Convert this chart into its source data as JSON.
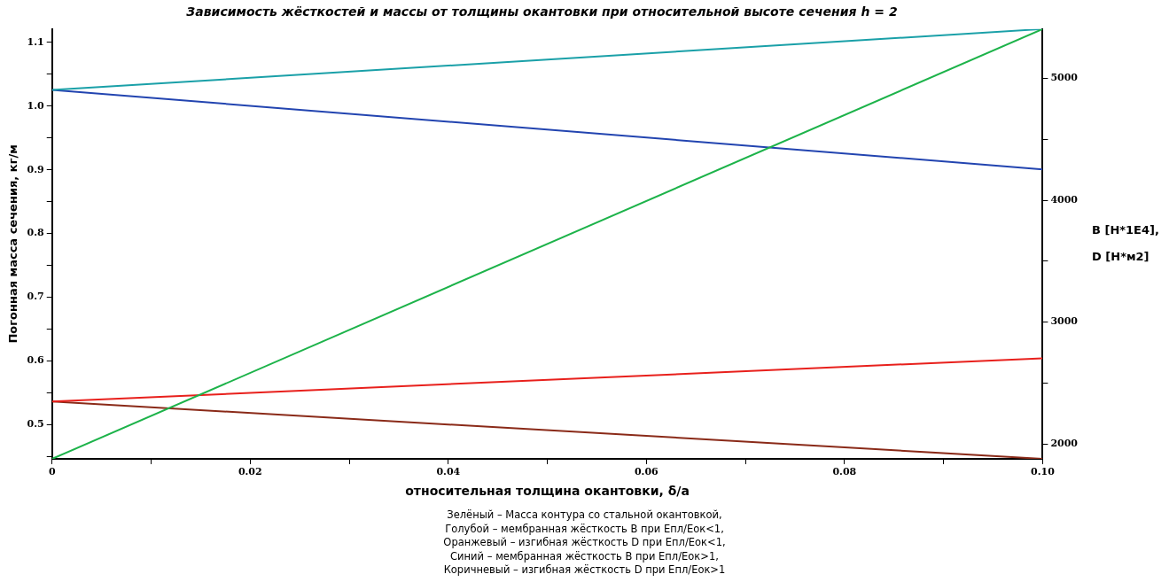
{
  "chart_data": {
    "type": "line",
    "title": "Зависимость жёсткостей и массы от толщины окантовки при относительной высоте сечения h = 2",
    "xlabel": "относительная толщина окантовки, δ/a",
    "ylabel": "Погонная масса сечения, кг/м",
    "y2label": "B [H*1E4], D [H*м2]",
    "x": [
      0,
      0.1
    ],
    "series": [
      {
        "color": "#1db34a",
        "values": [
          0.446,
          1.121
        ]
      },
      {
        "color": "#1aa0a8",
        "values": [
          4906,
          5406
        ],
        "axis": "y2"
      },
      {
        "color": "#2244b0",
        "values": [
          4906,
          4254
        ],
        "axis": "y2"
      },
      {
        "color": "#e8201c",
        "values": [
          2348,
          2703
        ],
        "axis": "y2"
      },
      {
        "color": "#8a2a18",
        "values": [
          2348,
          1877
        ],
        "axis": "y2"
      }
    ],
    "xlim": [
      0,
      0.1
    ],
    "xticks": [
      0,
      {
        "value": 0.01,
        "label": null
      },
      0.02,
      {
        "value": 0.03,
        "label": null
      },
      0.04,
      {
        "value": 0.05,
        "label": null
      },
      0.06,
      {
        "value": 0.07,
        "label": null
      },
      0.08,
      {
        "value": 0.09,
        "label": null
      },
      {
        "value": 0.1,
        "label": "0.10"
      }
    ],
    "ylim": [
      0.446,
      1.121
    ],
    "yticks": [
      {
        "value": 0.45,
        "label": null
      },
      0.5,
      {
        "value": 0.55,
        "label": null
      },
      0.6,
      {
        "value": 0.65,
        "label": null
      },
      0.7,
      {
        "value": 0.75,
        "label": null
      },
      0.8,
      {
        "value": 0.85,
        "label": null
      },
      0.9,
      {
        "value": 0.95,
        "label": null
      },
      {
        "value": 1.0,
        "label": "1.0"
      },
      {
        "value": 1.05,
        "label": null
      },
      1.1
    ],
    "y2lim": [
      1877,
      5406
    ],
    "y2ticks": [
      2000,
      {
        "value": 2500,
        "label": null
      },
      3000,
      {
        "value": 3500,
        "label": null
      },
      4000,
      {
        "value": 4500,
        "label": null
      },
      5000
    ],
    "grid": false,
    "legend": false,
    "marker": "none",
    "line_style": "solid",
    "annotations": [
      "Зелёный – Масса контура со стальной окантовкой,",
      "Голубой – мембранная жёсткость В при Епл/Еок<1,",
      "Оранжевый – изгибная жёсткость D при Епл/Еок<1,",
      "Синий – мембранная жёсткость В при Епл/Еок>1,",
      "Коричневый – изгибная жёсткость D при Епл/Еок>1"
    ]
  }
}
